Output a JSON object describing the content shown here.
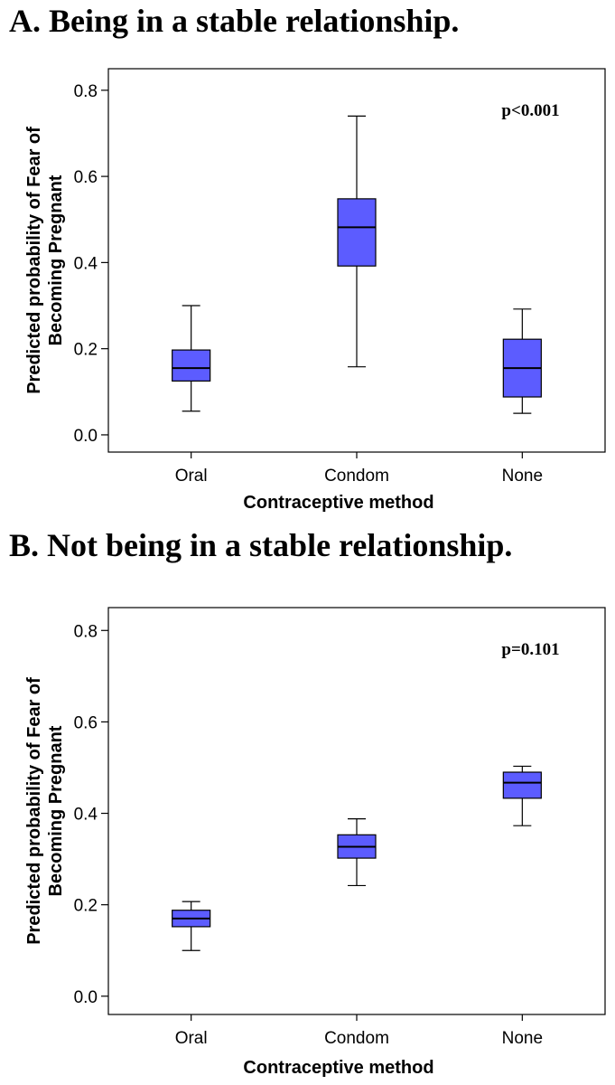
{
  "colors": {
    "box_fill": "#5c5cff",
    "line": "#000000",
    "background": "#ffffff"
  },
  "chart_data": [
    {
      "type": "boxplot",
      "title": "A. Being in a stable relationship.",
      "xlabel": "Contraceptive method",
      "ylabel_line1": "Predicted probability of Fear of",
      "ylabel_line2": "Becoming Pregnant",
      "ylim": [
        -0.04,
        0.85
      ],
      "yticks": [
        "0.0",
        "0.2",
        "0.4",
        "0.6",
        "0.8"
      ],
      "categories": [
        "Oral",
        "Condom",
        "None"
      ],
      "annotation": "p<0.001",
      "boxes": [
        {
          "min": 0.055,
          "q1": 0.125,
          "median": 0.155,
          "q3": 0.197,
          "max": 0.3
        },
        {
          "min": 0.158,
          "q1": 0.392,
          "median": 0.482,
          "q3": 0.548,
          "max": 0.74
        },
        {
          "min": 0.05,
          "q1": 0.088,
          "median": 0.155,
          "q3": 0.222,
          "max": 0.292
        }
      ]
    },
    {
      "type": "boxplot",
      "title": "B. Not being in a stable relationship.",
      "xlabel": "Contraceptive method",
      "ylabel_line1": "Predicted probability of Fear of",
      "ylabel_line2": "Becoming Pregnant",
      "ylim": [
        -0.04,
        0.85
      ],
      "yticks": [
        "0.0",
        "0.2",
        "0.4",
        "0.6",
        "0.8"
      ],
      "categories": [
        "Oral",
        "Condom",
        "None"
      ],
      "annotation": "p=0.101",
      "boxes": [
        {
          "min": 0.1,
          "q1": 0.152,
          "median": 0.17,
          "q3": 0.188,
          "max": 0.207
        },
        {
          "min": 0.242,
          "q1": 0.302,
          "median": 0.327,
          "q3": 0.353,
          "max": 0.388
        },
        {
          "min": 0.373,
          "q1": 0.433,
          "median": 0.467,
          "q3": 0.49,
          "max": 0.503
        }
      ]
    }
  ]
}
